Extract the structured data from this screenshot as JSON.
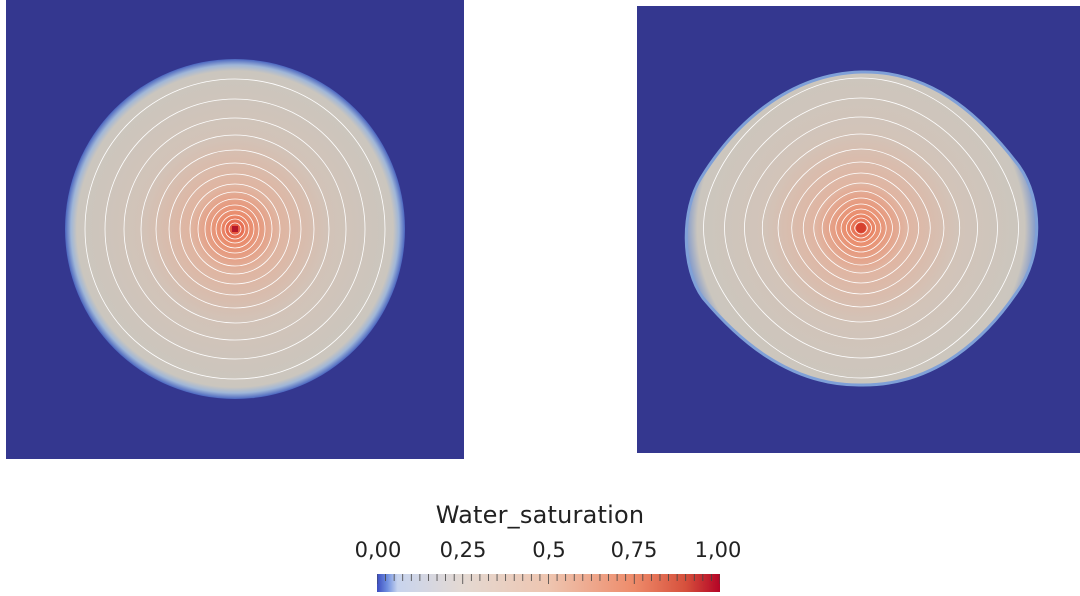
{
  "colorbar": {
    "title": "Water_saturation",
    "tick_labels": [
      "0,00",
      "0,25",
      "0,5",
      "0,75",
      "1,00"
    ],
    "colormap": "coolwarm",
    "range": [
      0,
      1
    ]
  },
  "colors": {
    "background_field": "#34378f",
    "blob_fill": "#cfc4ba",
    "core": "#d42d28",
    "contour_lines": "#ffffff"
  },
  "panels": [
    {
      "name": "left",
      "shape": "circle"
    },
    {
      "name": "right",
      "shape": "rounded-diamond"
    }
  ]
}
